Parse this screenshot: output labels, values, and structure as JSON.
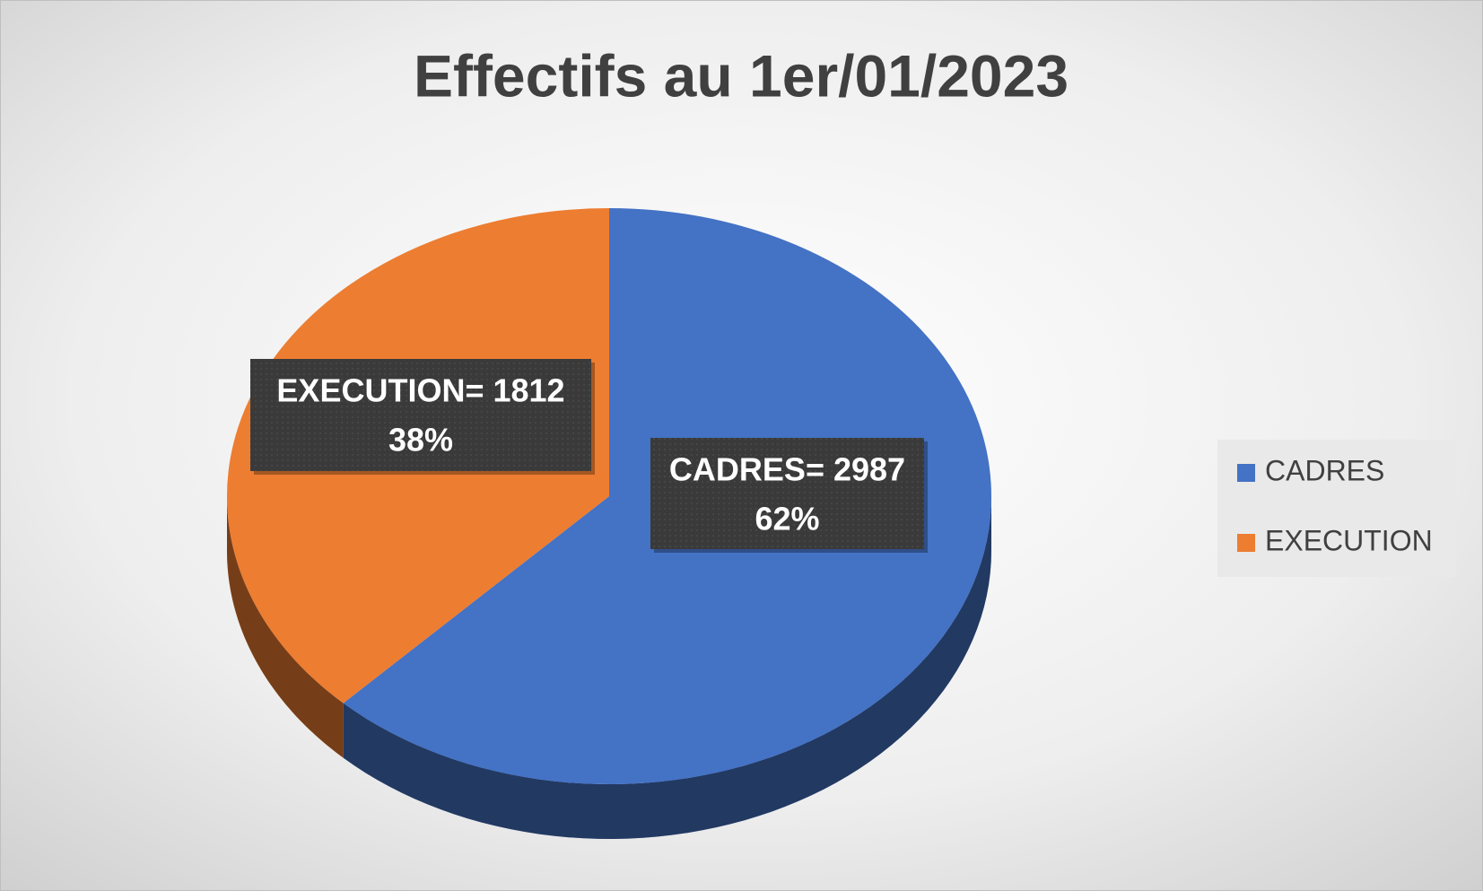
{
  "chart_data": {
    "type": "pie",
    "title": "Effectifs au 1er/01/2023",
    "categories": [
      "CADRES",
      "EXECUTION"
    ],
    "values": [
      2987,
      1812
    ],
    "value_labels": [
      "CADRES= 2987",
      "EXECUTION= 1812"
    ],
    "percentages": [
      62,
      38
    ],
    "percentage_labels": [
      "62%",
      "38%"
    ],
    "colors": [
      "#4472c4",
      "#ed7d31"
    ],
    "legend": "right"
  }
}
